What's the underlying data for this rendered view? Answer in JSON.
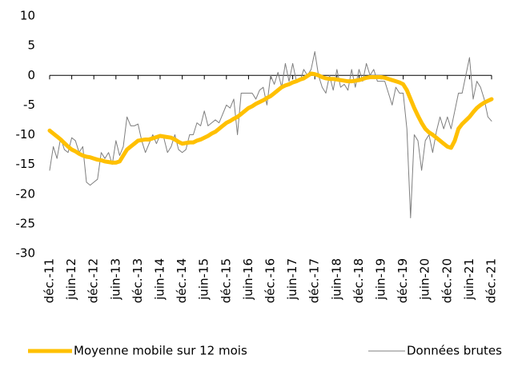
{
  "chart_data": {
    "type": "line",
    "categories": [
      "déc.-11",
      null,
      null,
      null,
      null,
      null,
      "juin-12",
      null,
      null,
      null,
      null,
      null,
      "déc.-12",
      null,
      null,
      null,
      null,
      null,
      "juin-13",
      null,
      null,
      null,
      null,
      null,
      "déc.-13",
      null,
      null,
      null,
      null,
      null,
      "juin-14",
      null,
      null,
      null,
      null,
      null,
      "déc.-14",
      null,
      null,
      null,
      null,
      null,
      "juin-15",
      null,
      null,
      null,
      null,
      null,
      "déc.-15",
      null,
      null,
      null,
      null,
      null,
      "juin-16",
      null,
      null,
      null,
      null,
      null,
      "déc.-16",
      null,
      null,
      null,
      null,
      null,
      "juin-17",
      null,
      null,
      null,
      null,
      null,
      "déc.-17",
      null,
      null,
      null,
      null,
      null,
      "juin-18",
      null,
      null,
      null,
      null,
      null,
      "déc.-18",
      null,
      null,
      null,
      null,
      null,
      "juin-19",
      null,
      null,
      null,
      null,
      null,
      "déc.-19",
      null,
      null,
      null,
      null,
      null,
      "juin-20",
      null,
      null,
      null,
      null,
      null,
      "déc.-20",
      null,
      null,
      null,
      null,
      null,
      "juin-21",
      null,
      null,
      null,
      null,
      null,
      "déc.-21"
    ],
    "series": [
      {
        "name": "Moyenne mobile sur 12 mois",
        "color": "#ffc000",
        "width": 5,
        "values": [
          -9.3,
          -9.8,
          -10.3,
          -10.8,
          -11.4,
          -12.0,
          -12.5,
          -12.8,
          -13.2,
          -13.5,
          -13.7,
          -13.8,
          -14.0,
          -14.2,
          -14.3,
          -14.5,
          -14.6,
          -14.7,
          -14.7,
          -14.5,
          -13.5,
          -12.5,
          -12.0,
          -11.5,
          -11.0,
          -10.9,
          -10.8,
          -10.8,
          -10.6,
          -10.4,
          -10.2,
          -10.3,
          -10.4,
          -10.5,
          -10.8,
          -11.2,
          -11.5,
          -11.4,
          -11.3,
          -11.3,
          -11.0,
          -10.8,
          -10.5,
          -10.2,
          -9.8,
          -9.5,
          -9.0,
          -8.5,
          -8.0,
          -7.7,
          -7.3,
          -7.0,
          -6.5,
          -6.0,
          -5.5,
          -5.2,
          -4.8,
          -4.5,
          -4.2,
          -3.8,
          -3.5,
          -3.0,
          -2.5,
          -2.0,
          -1.7,
          -1.5,
          -1.2,
          -1.0,
          -0.7,
          -0.5,
          -0.1,
          0.3,
          0.2,
          0.0,
          -0.3,
          -0.5,
          -0.6,
          -0.6,
          -0.7,
          -0.8,
          -0.9,
          -1.0,
          -1.0,
          -0.9,
          -0.8,
          -0.6,
          -0.4,
          -0.3,
          -0.3,
          -0.3,
          -0.3,
          -0.4,
          -0.6,
          -0.8,
          -1.0,
          -1.2,
          -1.5,
          -2.5,
          -4.0,
          -5.5,
          -6.8,
          -8.0,
          -9.0,
          -9.6,
          -10.0,
          -10.5,
          -11.0,
          -11.5,
          -12.0,
          -12.2,
          -11.0,
          -9.0,
          -8.2,
          -7.6,
          -7.0,
          -6.2,
          -5.5,
          -5.0,
          -4.6,
          -4.3,
          -4.0
        ]
      },
      {
        "name": "Données brutes",
        "color": "#7f7f7f",
        "width": 1,
        "values": [
          -16,
          -12,
          -14,
          -10.5,
          -12.5,
          -13,
          -10.5,
          -11,
          -13,
          -12,
          -18,
          -18.5,
          -18,
          -17.5,
          -13,
          -14,
          -13,
          -15,
          -11,
          -13.5,
          -12,
          -7,
          -8.5,
          -8.5,
          -8.2,
          -11,
          -13,
          -11.5,
          -10,
          -11.5,
          -10,
          -10.5,
          -13,
          -12,
          -10,
          -12.5,
          -13,
          -12.5,
          -10,
          -10,
          -8,
          -8.5,
          -6,
          -8.5,
          -8,
          -7.5,
          -8,
          -6.5,
          -5,
          -5.5,
          -4,
          -10,
          -3,
          -3,
          -3,
          -3,
          -4,
          -2.5,
          -2,
          -5,
          0,
          -1.5,
          0.5,
          -2,
          2,
          -1,
          2,
          -1,
          -1,
          1,
          0,
          1,
          4,
          0,
          -2,
          -3,
          0,
          -2.5,
          1,
          -2,
          -1.5,
          -2.5,
          1,
          -2,
          1,
          -1,
          2,
          0,
          1,
          -1,
          -1,
          -1,
          -3,
          -5,
          -2,
          -3,
          -3,
          -9,
          -24,
          -10,
          -11,
          -16,
          -11,
          -10,
          -13,
          -9.5,
          -7,
          -9,
          -7,
          -9,
          -6,
          -3,
          -3,
          0,
          3,
          -4,
          -1,
          -2,
          -4,
          -7,
          -7.7
        ]
      }
    ],
    "ylim": [
      -30,
      10
    ],
    "yticks": [
      -30,
      -25,
      -20,
      -15,
      -10,
      -5,
      0,
      5,
      10
    ]
  }
}
